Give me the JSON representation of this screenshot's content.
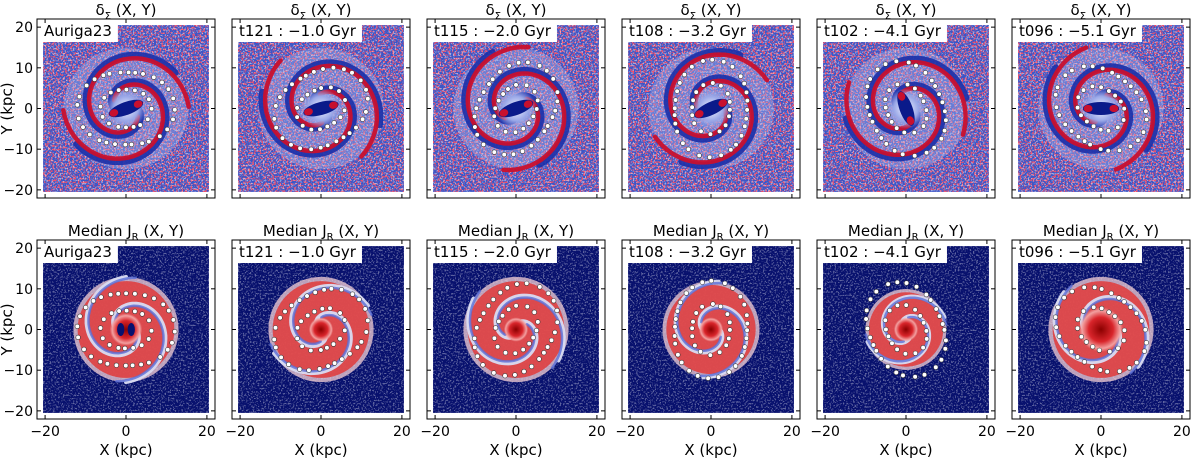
{
  "figure": {
    "rows": [
      {
        "id": "density",
        "title_main": "δ",
        "title_sub": "Σ",
        "title_rest": " (X, Y)"
      },
      {
        "id": "jr",
        "title_main": "Median J",
        "title_sub": "R",
        "title_rest": " (X, Y)"
      }
    ],
    "snapshots": [
      {
        "label": "Auriga23"
      },
      {
        "label": "t121 :  −1.0 Gyr"
      },
      {
        "label": "t115 :  −2.0 Gyr"
      },
      {
        "label": "t108 :  −3.2 Gyr"
      },
      {
        "label": "t102 :  −4.1 Gyr"
      },
      {
        "label": "t096 :  −5.1 Gyr"
      }
    ],
    "xlabel": "X (kpc)",
    "ylabel": "Y (kpc)",
    "x_ticks": [
      "−20",
      "0",
      "20"
    ],
    "y_ticks": [
      "20",
      "10",
      "0",
      "−10",
      "−20"
    ]
  },
  "colors": {
    "red": "#c8102e",
    "blue": "#1a2fa8",
    "navy": "#08116e",
    "white": "#ffffff",
    "marker": "#ffffff"
  },
  "chart_data": {
    "type": "heatmap",
    "colormap": "seismic",
    "xlim": [
      -22,
      22
    ],
    "ylim": [
      -22,
      22
    ],
    "grid": false,
    "panels": [
      {
        "row": "density",
        "snapshot": "Auriga23"
      },
      {
        "row": "density",
        "snapshot": "t121 :  −1.0 Gyr"
      },
      {
        "row": "density",
        "snapshot": "t115 :  −2.0 Gyr"
      },
      {
        "row": "density",
        "snapshot": "t108 :  −3.2 Gyr"
      },
      {
        "row": "density",
        "snapshot": "t102 :  −4.1 Gyr"
      },
      {
        "row": "density",
        "snapshot": "t096 :  −5.1 Gyr"
      },
      {
        "row": "jr",
        "snapshot": "Auriga23"
      },
      {
        "row": "jr",
        "snapshot": "t121 :  −1.0 Gyr"
      },
      {
        "row": "jr",
        "snapshot": "t115 :  −2.0 Gyr"
      },
      {
        "row": "jr",
        "snapshot": "t108 :  −3.2 Gyr"
      },
      {
        "row": "jr",
        "snapshot": "t102 :  −4.1 Gyr"
      },
      {
        "row": "jr",
        "snapshot": "t096 :  −5.1 Gyr"
      }
    ]
  }
}
